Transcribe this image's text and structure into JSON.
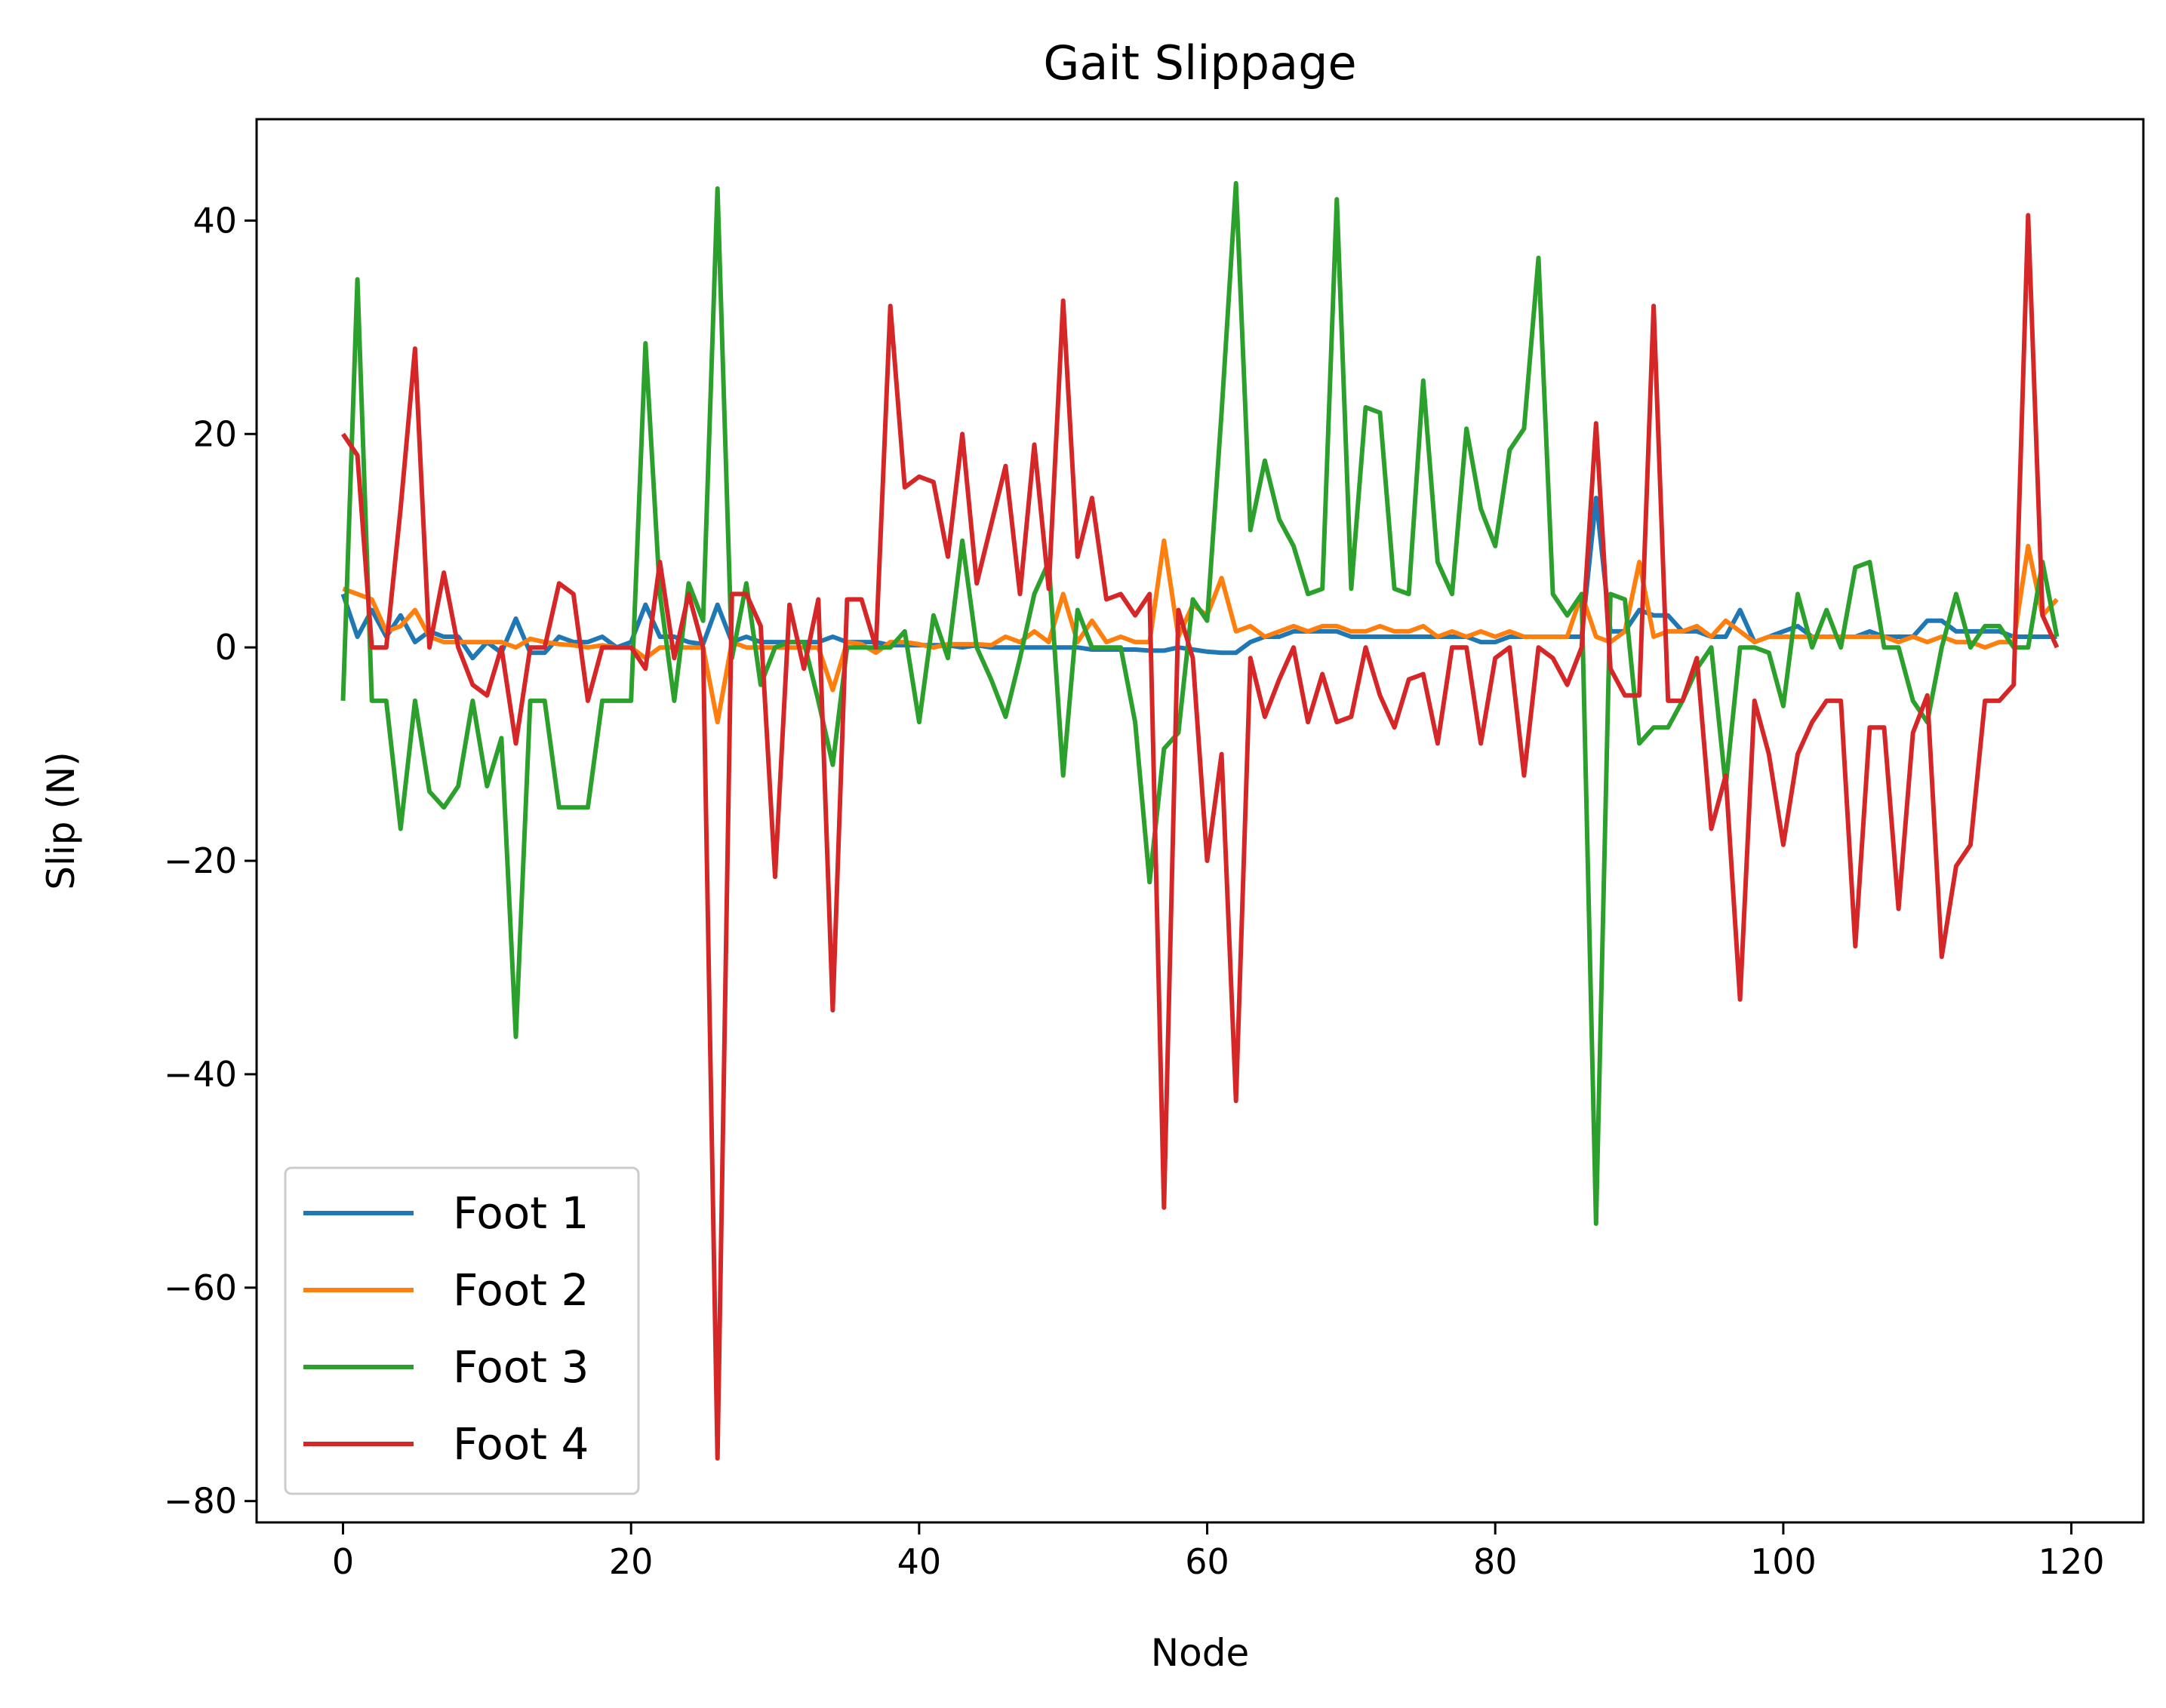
{
  "chart_data": {
    "type": "line",
    "title": "Gait Slippage",
    "xlabel": "Node",
    "ylabel": "Slip (N)",
    "xlim": [
      -6,
      125
    ],
    "ylim": [
      -82,
      49.5
    ],
    "xticks": [
      0,
      20,
      40,
      60,
      80,
      100,
      120
    ],
    "yticks": [
      -80,
      -60,
      -40,
      -20,
      0,
      20,
      40
    ],
    "legend_position": "lower-left",
    "grid": false,
    "series": [
      {
        "name": "Foot 1",
        "color": "#1f77b4",
        "values": [
          5,
          1,
          3.5,
          1,
          3,
          0.5,
          1.5,
          1,
          1,
          -1,
          0.5,
          -0.5,
          2.7,
          -0.5,
          -0.5,
          1,
          0.5,
          0.5,
          1,
          0,
          0.5,
          4,
          1,
          1,
          0.5,
          0.3,
          4,
          0.5,
          1,
          0.5,
          0.5,
          0.5,
          0.5,
          0.5,
          1,
          0.5,
          0.5,
          0.5,
          0.2,
          0.2,
          0.2,
          0.2,
          0.2,
          0,
          0.2,
          0,
          0,
          0,
          0,
          0,
          0,
          0,
          -0.2,
          -0.2,
          -0.2,
          -0.2,
          -0.3,
          -0.3,
          0,
          -0.2,
          -0.4,
          -0.5,
          -0.5,
          0.5,
          1,
          1,
          1.5,
          1.5,
          1.5,
          1.5,
          1,
          1,
          1,
          1,
          1,
          1,
          1,
          1,
          1,
          0.5,
          0.5,
          1,
          1,
          1,
          1,
          1,
          1,
          14,
          1.5,
          1.5,
          3.5,
          3,
          3,
          1.5,
          1.5,
          1,
          1,
          3.5,
          0.5,
          1,
          1.5,
          2,
          1,
          1,
          1,
          1,
          1.5,
          1,
          1,
          1,
          2.5,
          2.5,
          1.5,
          1.5,
          1.5,
          1.5,
          1,
          1,
          1,
          1
        ]
      },
      {
        "name": "Foot 2",
        "color": "#ff7f0e",
        "values": [
          5.5,
          5,
          4.5,
          1.5,
          2,
          3.5,
          1,
          0.5,
          0.5,
          0.5,
          0.5,
          0.5,
          0,
          0.8,
          0.5,
          0.3,
          0.2,
          0,
          0.2,
          0,
          0,
          -1,
          0,
          0,
          0,
          0,
          -7,
          0.5,
          0,
          0,
          0,
          0,
          0,
          0,
          -4,
          0.5,
          0.3,
          -0.5,
          0.5,
          0.5,
          0.3,
          0,
          0.3,
          0.3,
          0.3,
          0.2,
          1,
          0.5,
          1.5,
          0.5,
          5,
          0.5,
          2.5,
          0.5,
          1,
          0.5,
          0.5,
          10,
          1,
          4,
          3,
          6.5,
          1.5,
          2,
          1,
          1.5,
          2,
          1.5,
          2,
          2,
          1.5,
          1.5,
          2,
          1.5,
          1.5,
          2,
          1,
          1.5,
          1,
          1.5,
          1,
          1.5,
          1,
          1,
          1,
          1,
          5,
          1,
          0.5,
          1.5,
          8,
          1,
          1.5,
          1.5,
          2,
          1,
          2.5,
          1.5,
          0.5,
          1,
          1,
          1,
          1,
          1,
          1,
          1,
          1,
          1,
          0.5,
          1,
          0.5,
          1,
          0.5,
          0.5,
          0,
          0.5,
          0.5,
          9.5,
          3,
          4.5
        ]
      },
      {
        "name": "Foot 3",
        "color": "#2ca02c",
        "values": [
          -5,
          34.5,
          -5,
          -5,
          -17,
          -5,
          -13.5,
          -15,
          -13,
          -5,
          -13,
          -8.5,
          -36.5,
          -5,
          -5,
          -15,
          -15,
          -15,
          -5,
          -5,
          -5,
          28.5,
          5,
          -5,
          6,
          2.5,
          43,
          -1,
          6,
          -3.5,
          0,
          0.5,
          0.5,
          -5,
          -11,
          0,
          0,
          0,
          0,
          1.5,
          -7,
          3,
          -1,
          10,
          0,
          -3,
          -6.5,
          -1,
          5,
          8,
          -12,
          3.5,
          0,
          0,
          0,
          -7,
          -22,
          -9.5,
          -8,
          4.5,
          2.5,
          22,
          43.5,
          11,
          17.5,
          12,
          9.5,
          5,
          5.5,
          42,
          5.5,
          22.5,
          22,
          5.5,
          5,
          25,
          8,
          5,
          20.5,
          13,
          9.5,
          18.5,
          20.5,
          36.5,
          5,
          3,
          5,
          -54,
          5,
          4.5,
          -9,
          -7.5,
          -7.5,
          -5,
          -2,
          0,
          -13,
          0,
          0,
          -0.5,
          -5.5,
          5,
          0,
          3.5,
          0,
          7.5,
          8,
          0,
          0,
          -5,
          -7,
          0,
          5,
          0,
          2,
          2,
          0,
          0,
          8,
          1
        ]
      },
      {
        "name": "Foot 4",
        "color": "#d62728",
        "values": [
          20,
          18,
          0,
          0,
          13,
          28,
          0,
          7,
          0,
          -3.5,
          -4.5,
          0,
          -9,
          0,
          0,
          6,
          5,
          -5,
          0,
          0,
          0,
          -2,
          8,
          -1,
          5,
          0,
          -76,
          5,
          5,
          2,
          -21.5,
          4,
          -2,
          4.5,
          -34,
          4.5,
          4.5,
          0,
          32,
          15,
          16,
          15.5,
          8.5,
          20,
          6,
          11.5,
          17,
          5,
          19,
          5.5,
          32.5,
          8.5,
          14,
          4.5,
          5,
          3,
          5,
          -52.5,
          3.5,
          -1,
          -20,
          -10,
          -42.5,
          -1,
          -6.5,
          -3,
          0,
          -7,
          -2.5,
          -7,
          -6.5,
          0,
          -4.5,
          -7.5,
          -3,
          -2.5,
          -9,
          0,
          0,
          -9,
          -1,
          0,
          -12,
          0,
          -1,
          -3.5,
          0,
          21,
          -2,
          -4.5,
          -4.5,
          32,
          -5,
          -5,
          -1,
          -17,
          -12,
          -33,
          -5,
          -10,
          -18.5,
          -10,
          -7,
          -5,
          -5,
          -28,
          -7.5,
          -7.5,
          -24.5,
          -8,
          -4.5,
          -29,
          -20.5,
          -18.5,
          -5,
          -5,
          -3.5,
          40.5,
          3,
          0
        ]
      }
    ]
  }
}
